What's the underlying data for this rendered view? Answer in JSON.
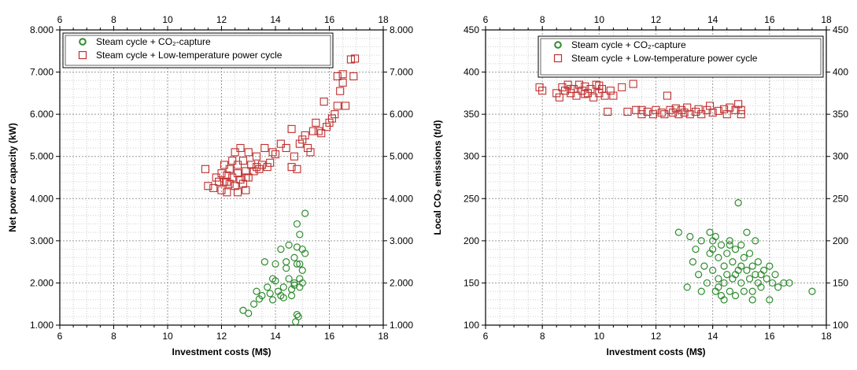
{
  "chart_data": [
    {
      "type": "scatter",
      "xlabel": "Investment costs (M$)",
      "ylabel": "Net power capacity (kW)",
      "xlim": [
        6,
        18
      ],
      "ylim": [
        1000,
        8000
      ],
      "xticks": [
        "6",
        "8",
        "10",
        "12",
        "14",
        "16",
        "18"
      ],
      "yticks": [
        {
          "value": 1000,
          "label": "1.000"
        },
        {
          "value": 2000,
          "label": "2.000"
        },
        {
          "value": 3000,
          "label": "3.000"
        },
        {
          "value": 4000,
          "label": "4.000"
        },
        {
          "value": 5000,
          "label": "5.000"
        },
        {
          "value": 6000,
          "label": "6.000"
        },
        {
          "value": 7000,
          "label": "7.000"
        },
        {
          "value": 8000,
          "label": "8.000"
        }
      ],
      "grid": true,
      "legend_position": "top",
      "series": [
        {
          "name": "Steam cycle + CO₂-capture",
          "marker": "circle",
          "color": "#2e8b2e",
          "points": [
            [
              12.8,
              1350
            ],
            [
              13.0,
              1280
            ],
            [
              13.2,
              1500
            ],
            [
              13.3,
              1800
            ],
            [
              13.4,
              1620
            ],
            [
              13.5,
              1700
            ],
            [
              13.6,
              2500
            ],
            [
              13.7,
              1900
            ],
            [
              13.8,
              1750
            ],
            [
              13.9,
              2100
            ],
            [
              13.9,
              1600
            ],
            [
              14.0,
              2050
            ],
            [
              14.0,
              2450
            ],
            [
              14.1,
              1800
            ],
            [
              14.2,
              1700
            ],
            [
              14.2,
              2800
            ],
            [
              14.3,
              1900
            ],
            [
              14.3,
              1650
            ],
            [
              14.4,
              2500
            ],
            [
              14.4,
              2350
            ],
            [
              14.5,
              2900
            ],
            [
              14.5,
              2100
            ],
            [
              14.6,
              1850
            ],
            [
              14.7,
              2000
            ],
            [
              14.7,
              2600
            ],
            [
              14.8,
              2850
            ],
            [
              14.8,
              2450
            ],
            [
              14.8,
              3400
            ],
            [
              14.9,
              3150
            ],
            [
              14.9,
              2100
            ],
            [
              14.9,
              1900
            ],
            [
              15.0,
              2800
            ],
            [
              15.0,
              2300
            ],
            [
              15.0,
              2000
            ],
            [
              15.1,
              3650
            ],
            [
              15.1,
              2700
            ],
            [
              14.75,
              1080
            ],
            [
              14.85,
              1200
            ],
            [
              14.8,
              1250
            ],
            [
              14.6,
              1700
            ],
            [
              14.7,
              1950
            ],
            [
              14.9,
              2450
            ]
          ]
        },
        {
          "name": "Steam cycle + Low-temperature power cycle",
          "marker": "square",
          "color": "#c03030",
          "points": [
            [
              11.4,
              4700
            ],
            [
              11.5,
              4300
            ],
            [
              11.7,
              4250
            ],
            [
              11.8,
              4500
            ],
            [
              11.9,
              4400
            ],
            [
              12.0,
              4600
            ],
            [
              12.0,
              4200
            ],
            [
              12.1,
              4800
            ],
            [
              12.1,
              4400
            ],
            [
              12.2,
              4550
            ],
            [
              12.2,
              4150
            ],
            [
              12.3,
              4700
            ],
            [
              12.3,
              4350
            ],
            [
              12.4,
              4900
            ],
            [
              12.4,
              4500
            ],
            [
              12.5,
              5100
            ],
            [
              12.5,
              4300
            ],
            [
              12.6,
              4800
            ],
            [
              12.6,
              4600
            ],
            [
              12.7,
              5200
            ],
            [
              12.7,
              4450
            ],
            [
              12.8,
              4900
            ],
            [
              12.8,
              4350
            ],
            [
              12.9,
              4650
            ],
            [
              12.9,
              4200
            ],
            [
              13.0,
              5100
            ],
            [
              13.0,
              4500
            ],
            [
              13.1,
              4800
            ],
            [
              13.2,
              4650
            ],
            [
              13.3,
              5000
            ],
            [
              13.4,
              4700
            ],
            [
              13.5,
              4800
            ],
            [
              13.6,
              5200
            ],
            [
              13.7,
              4750
            ],
            [
              13.8,
              4850
            ],
            [
              13.9,
              5100
            ],
            [
              14.0,
              5050
            ],
            [
              14.2,
              5300
            ],
            [
              14.4,
              5200
            ],
            [
              14.6,
              5650
            ],
            [
              14.7,
              5000
            ],
            [
              14.8,
              4700
            ],
            [
              14.9,
              5300
            ],
            [
              15.0,
              5400
            ],
            [
              15.1,
              5500
            ],
            [
              15.2,
              5200
            ],
            [
              15.3,
              5100
            ],
            [
              15.4,
              5600
            ],
            [
              15.5,
              5800
            ],
            [
              15.6,
              5600
            ],
            [
              15.7,
              5550
            ],
            [
              15.8,
              6300
            ],
            [
              15.9,
              5700
            ],
            [
              16.0,
              5800
            ],
            [
              16.1,
              5900
            ],
            [
              16.2,
              6000
            ],
            [
              16.3,
              6900
            ],
            [
              16.3,
              6200
            ],
            [
              16.4,
              6550
            ],
            [
              16.5,
              6950
            ],
            [
              16.6,
              6200
            ],
            [
              16.8,
              7300
            ],
            [
              16.9,
              6900
            ],
            [
              16.95,
              7320
            ],
            [
              16.5,
              6750
            ],
            [
              12.2,
              4400
            ],
            [
              12.6,
              4150
            ],
            [
              12.9,
              4500
            ],
            [
              13.3,
              4750
            ],
            [
              14.6,
              4750
            ]
          ]
        }
      ]
    },
    {
      "type": "scatter",
      "xlabel": "Investment costs (M$)",
      "ylabel": "Local CO₂ emissions (t/d)",
      "xlim": [
        6,
        18
      ],
      "ylim": [
        100,
        450
      ],
      "xticks": [
        "6",
        "8",
        "10",
        "12",
        "14",
        "16",
        "18"
      ],
      "yticks": [
        {
          "value": 100,
          "label": "100"
        },
        {
          "value": 150,
          "label": "150"
        },
        {
          "value": 200,
          "label": "200"
        },
        {
          "value": 250,
          "label": "250"
        },
        {
          "value": 300,
          "label": "300"
        },
        {
          "value": 350,
          "label": "350"
        },
        {
          "value": 400,
          "label": "400"
        },
        {
          "value": 450,
          "label": "450"
        }
      ],
      "grid": true,
      "legend_position": "top-right",
      "series": [
        {
          "name": "Steam cycle + CO₂-capture",
          "marker": "circle",
          "color": "#2e8b2e",
          "points": [
            [
              12.8,
              210
            ],
            [
              13.1,
              145
            ],
            [
              13.2,
              205
            ],
            [
              13.3,
              175
            ],
            [
              13.4,
              190
            ],
            [
              13.5,
              160
            ],
            [
              13.6,
              140
            ],
            [
              13.6,
              200
            ],
            [
              13.7,
              170
            ],
            [
              13.8,
              150
            ],
            [
              13.9,
              185
            ],
            [
              14.0,
              200
            ],
            [
              14.0,
              165
            ],
            [
              14.1,
              205
            ],
            [
              14.1,
              140
            ],
            [
              14.2,
              180
            ],
            [
              14.2,
              155
            ],
            [
              14.3,
              195
            ],
            [
              14.3,
              135
            ],
            [
              14.4,
              170
            ],
            [
              14.4,
              150
            ],
            [
              14.5,
              185
            ],
            [
              14.5,
              160
            ],
            [
              14.6,
              200
            ],
            [
              14.6,
              140
            ],
            [
              14.7,
              175
            ],
            [
              14.7,
              155
            ],
            [
              14.8,
              190
            ],
            [
              14.8,
              135
            ],
            [
              14.9,
              165
            ],
            [
              14.9,
              245
            ],
            [
              15.0,
              195
            ],
            [
              15.0,
              150
            ],
            [
              15.1,
              180
            ],
            [
              15.1,
              140
            ],
            [
              15.2,
              210
            ],
            [
              15.2,
              165
            ],
            [
              15.3,
              155
            ],
            [
              15.3,
              185
            ],
            [
              15.4,
              140
            ],
            [
              15.4,
              170
            ],
            [
              15.5,
              160
            ],
            [
              15.5,
              200
            ],
            [
              15.6,
              150
            ],
            [
              15.6,
              175
            ],
            [
              15.7,
              145
            ],
            [
              15.8,
              165
            ],
            [
              15.9,
              155
            ],
            [
              16.0,
              170
            ],
            [
              16.0,
              130
            ],
            [
              16.1,
              150
            ],
            [
              16.2,
              160
            ],
            [
              16.3,
              145
            ],
            [
              16.5,
              150
            ],
            [
              16.7,
              150
            ],
            [
              17.5,
              140
            ],
            [
              14.2,
              145
            ],
            [
              14.8,
              160
            ],
            [
              15.0,
              170
            ],
            [
              15.7,
              160
            ],
            [
              14.0,
              190
            ],
            [
              13.9,
              210
            ],
            [
              15.4,
              130
            ],
            [
              14.6,
              195
            ],
            [
              14.4,
              130
            ]
          ]
        },
        {
          "name": "Steam cycle + Low-temperature power cycle",
          "marker": "square",
          "color": "#c03030",
          "points": [
            [
              7.9,
              382
            ],
            [
              8.0,
              378
            ],
            [
              8.5,
              375
            ],
            [
              8.6,
              370
            ],
            [
              8.7,
              382
            ],
            [
              8.8,
              378
            ],
            [
              8.9,
              385
            ],
            [
              9.0,
              375
            ],
            [
              9.1,
              380
            ],
            [
              9.2,
              372
            ],
            [
              9.3,
              385
            ],
            [
              9.4,
              378
            ],
            [
              9.5,
              383
            ],
            [
              9.6,
              375
            ],
            [
              9.7,
              380
            ],
            [
              9.8,
              370
            ],
            [
              9.9,
              385
            ],
            [
              10.0,
              375
            ],
            [
              10.1,
              380
            ],
            [
              10.2,
              372
            ],
            [
              10.3,
              353
            ],
            [
              10.4,
              378
            ],
            [
              10.5,
              372
            ],
            [
              10.8,
              382
            ],
            [
              11.0,
              353
            ],
            [
              11.2,
              386
            ],
            [
              11.3,
              355
            ],
            [
              11.5,
              350
            ],
            [
              11.7,
              353
            ],
            [
              11.9,
              350
            ],
            [
              12.0,
              355
            ],
            [
              12.2,
              352
            ],
            [
              12.3,
              350
            ],
            [
              12.4,
              372
            ],
            [
              12.5,
              355
            ],
            [
              12.6,
              352
            ],
            [
              12.8,
              350
            ],
            [
              12.9,
              355
            ],
            [
              13.0,
              352
            ],
            [
              13.1,
              358
            ],
            [
              13.2,
              350
            ],
            [
              13.4,
              353
            ],
            [
              13.5,
              356
            ],
            [
              13.6,
              350
            ],
            [
              13.8,
              355
            ],
            [
              13.9,
              360
            ],
            [
              14.0,
              352
            ],
            [
              14.2,
              354
            ],
            [
              14.4,
              356
            ],
            [
              14.5,
              350
            ],
            [
              14.6,
              358
            ],
            [
              14.8,
              355
            ],
            [
              14.9,
              362
            ],
            [
              15.0,
              355
            ],
            [
              15.0,
              350
            ],
            [
              9.0,
              380
            ],
            [
              9.5,
              374
            ],
            [
              10.0,
              384
            ],
            [
              11.5,
              355
            ],
            [
              12.7,
              357
            ]
          ]
        }
      ]
    }
  ]
}
